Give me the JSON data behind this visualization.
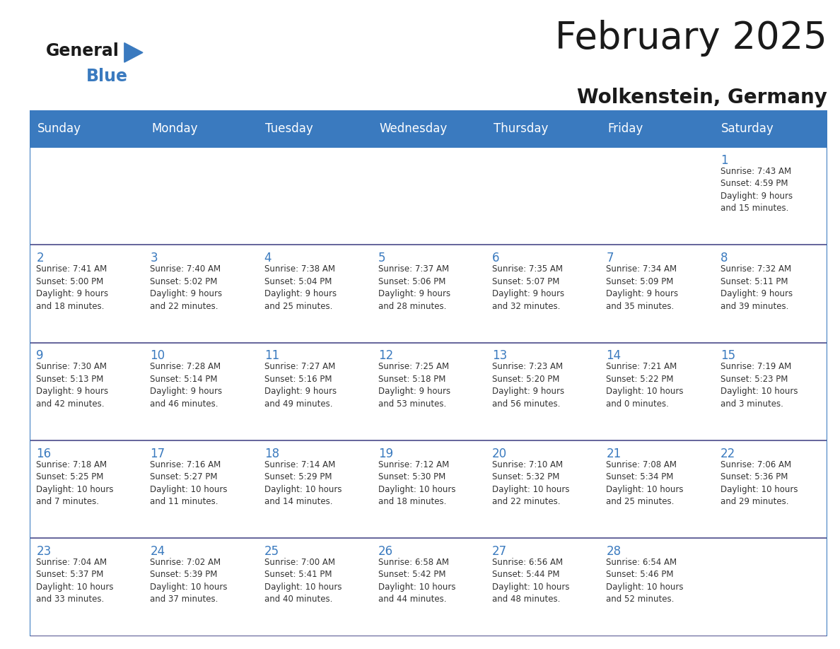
{
  "title": "February 2025",
  "subtitle": "Wolkenstein, Germany",
  "header_bg_color": "#3a7abf",
  "header_text_color": "#ffffff",
  "cell_bg_color": "#ffffff",
  "cell_text_color": "#333333",
  "day_num_color": "#3a7abf",
  "grid_line_color": "#3a7abf",
  "separator_line_color": "#4a4a8a",
  "days_of_week": [
    "Sunday",
    "Monday",
    "Tuesday",
    "Wednesday",
    "Thursday",
    "Friday",
    "Saturday"
  ],
  "weeks": [
    [
      {
        "day": null,
        "info": null
      },
      {
        "day": null,
        "info": null
      },
      {
        "day": null,
        "info": null
      },
      {
        "day": null,
        "info": null
      },
      {
        "day": null,
        "info": null
      },
      {
        "day": null,
        "info": null
      },
      {
        "day": 1,
        "info": "Sunrise: 7:43 AM\nSunset: 4:59 PM\nDaylight: 9 hours\nand 15 minutes."
      }
    ],
    [
      {
        "day": 2,
        "info": "Sunrise: 7:41 AM\nSunset: 5:00 PM\nDaylight: 9 hours\nand 18 minutes."
      },
      {
        "day": 3,
        "info": "Sunrise: 7:40 AM\nSunset: 5:02 PM\nDaylight: 9 hours\nand 22 minutes."
      },
      {
        "day": 4,
        "info": "Sunrise: 7:38 AM\nSunset: 5:04 PM\nDaylight: 9 hours\nand 25 minutes."
      },
      {
        "day": 5,
        "info": "Sunrise: 7:37 AM\nSunset: 5:06 PM\nDaylight: 9 hours\nand 28 minutes."
      },
      {
        "day": 6,
        "info": "Sunrise: 7:35 AM\nSunset: 5:07 PM\nDaylight: 9 hours\nand 32 minutes."
      },
      {
        "day": 7,
        "info": "Sunrise: 7:34 AM\nSunset: 5:09 PM\nDaylight: 9 hours\nand 35 minutes."
      },
      {
        "day": 8,
        "info": "Sunrise: 7:32 AM\nSunset: 5:11 PM\nDaylight: 9 hours\nand 39 minutes."
      }
    ],
    [
      {
        "day": 9,
        "info": "Sunrise: 7:30 AM\nSunset: 5:13 PM\nDaylight: 9 hours\nand 42 minutes."
      },
      {
        "day": 10,
        "info": "Sunrise: 7:28 AM\nSunset: 5:14 PM\nDaylight: 9 hours\nand 46 minutes."
      },
      {
        "day": 11,
        "info": "Sunrise: 7:27 AM\nSunset: 5:16 PM\nDaylight: 9 hours\nand 49 minutes."
      },
      {
        "day": 12,
        "info": "Sunrise: 7:25 AM\nSunset: 5:18 PM\nDaylight: 9 hours\nand 53 minutes."
      },
      {
        "day": 13,
        "info": "Sunrise: 7:23 AM\nSunset: 5:20 PM\nDaylight: 9 hours\nand 56 minutes."
      },
      {
        "day": 14,
        "info": "Sunrise: 7:21 AM\nSunset: 5:22 PM\nDaylight: 10 hours\nand 0 minutes."
      },
      {
        "day": 15,
        "info": "Sunrise: 7:19 AM\nSunset: 5:23 PM\nDaylight: 10 hours\nand 3 minutes."
      }
    ],
    [
      {
        "day": 16,
        "info": "Sunrise: 7:18 AM\nSunset: 5:25 PM\nDaylight: 10 hours\nand 7 minutes."
      },
      {
        "day": 17,
        "info": "Sunrise: 7:16 AM\nSunset: 5:27 PM\nDaylight: 10 hours\nand 11 minutes."
      },
      {
        "day": 18,
        "info": "Sunrise: 7:14 AM\nSunset: 5:29 PM\nDaylight: 10 hours\nand 14 minutes."
      },
      {
        "day": 19,
        "info": "Sunrise: 7:12 AM\nSunset: 5:30 PM\nDaylight: 10 hours\nand 18 minutes."
      },
      {
        "day": 20,
        "info": "Sunrise: 7:10 AM\nSunset: 5:32 PM\nDaylight: 10 hours\nand 22 minutes."
      },
      {
        "day": 21,
        "info": "Sunrise: 7:08 AM\nSunset: 5:34 PM\nDaylight: 10 hours\nand 25 minutes."
      },
      {
        "day": 22,
        "info": "Sunrise: 7:06 AM\nSunset: 5:36 PM\nDaylight: 10 hours\nand 29 minutes."
      }
    ],
    [
      {
        "day": 23,
        "info": "Sunrise: 7:04 AM\nSunset: 5:37 PM\nDaylight: 10 hours\nand 33 minutes."
      },
      {
        "day": 24,
        "info": "Sunrise: 7:02 AM\nSunset: 5:39 PM\nDaylight: 10 hours\nand 37 minutes."
      },
      {
        "day": 25,
        "info": "Sunrise: 7:00 AM\nSunset: 5:41 PM\nDaylight: 10 hours\nand 40 minutes."
      },
      {
        "day": 26,
        "info": "Sunrise: 6:58 AM\nSunset: 5:42 PM\nDaylight: 10 hours\nand 44 minutes."
      },
      {
        "day": 27,
        "info": "Sunrise: 6:56 AM\nSunset: 5:44 PM\nDaylight: 10 hours\nand 48 minutes."
      },
      {
        "day": 28,
        "info": "Sunrise: 6:54 AM\nSunset: 5:46 PM\nDaylight: 10 hours\nand 52 minutes."
      },
      {
        "day": null,
        "info": null
      }
    ]
  ],
  "logo_general_color": "#1a1a1a",
  "logo_blue_color": "#3a7abf",
  "logo_triangle_color": "#3a7abf",
  "title_color": "#1a1a1a",
  "subtitle_color": "#1a1a1a",
  "title_fontsize": 38,
  "subtitle_fontsize": 20,
  "header_fontsize": 12,
  "day_num_fontsize": 12,
  "cell_info_fontsize": 8.5,
  "fig_bg_color": "#ffffff"
}
